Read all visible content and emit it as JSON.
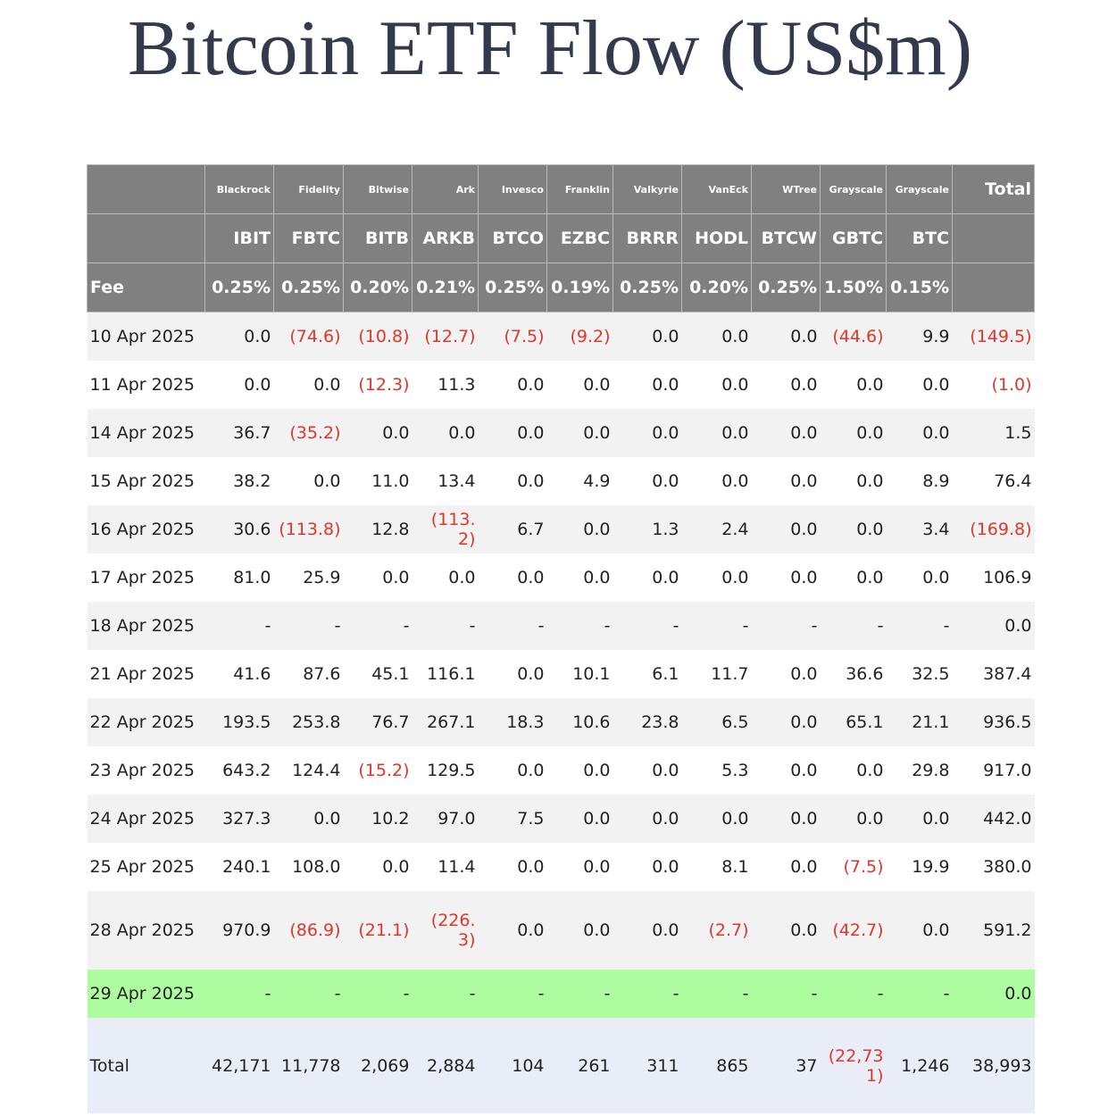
{
  "title": "Bitcoin ETF Flow (US$m)",
  "table": {
    "issuers": [
      "Blackrock",
      "Fidelity",
      "Bitwise",
      "Ark",
      "Invesco",
      "Franklin",
      "Valkyrie",
      "VanEck",
      "WTree",
      "Grayscale",
      "Grayscale"
    ],
    "total_header": "Total",
    "tickers": [
      "IBIT",
      "FBTC",
      "BITB",
      "ARKB",
      "BTCO",
      "EZBC",
      "BRRR",
      "HODL",
      "BTCW",
      "GBTC",
      "BTC"
    ],
    "fee_label": "Fee",
    "fees": [
      "0.25%",
      "0.25%",
      "0.20%",
      "0.21%",
      "0.25%",
      "0.19%",
      "0.25%",
      "0.20%",
      "0.25%",
      "1.50%",
      "0.15%"
    ],
    "rows": [
      [
        "10 Apr 2025",
        "0.0",
        "(74.6)",
        "(10.8)",
        "(12.7)",
        "(7.5)",
        "(9.2)",
        "0.0",
        "0.0",
        "0.0",
        "(44.6)",
        "9.9",
        "(149.5)"
      ],
      [
        "11 Apr 2025",
        "0.0",
        "0.0",
        "(12.3)",
        "11.3",
        "0.0",
        "0.0",
        "0.0",
        "0.0",
        "0.0",
        "0.0",
        "0.0",
        "(1.0)"
      ],
      [
        "14 Apr 2025",
        "36.7",
        "(35.2)",
        "0.0",
        "0.0",
        "0.0",
        "0.0",
        "0.0",
        "0.0",
        "0.0",
        "0.0",
        "0.0",
        "1.5"
      ],
      [
        "15 Apr 2025",
        "38.2",
        "0.0",
        "11.0",
        "13.4",
        "0.0",
        "4.9",
        "0.0",
        "0.0",
        "0.0",
        "0.0",
        "8.9",
        "76.4"
      ],
      [
        "16 Apr 2025",
        "30.6",
        "(113.8)",
        "12.8",
        "(113.2)",
        "6.7",
        "0.0",
        "1.3",
        "2.4",
        "0.0",
        "0.0",
        "3.4",
        "(169.8)"
      ],
      [
        "17 Apr 2025",
        "81.0",
        "25.9",
        "0.0",
        "0.0",
        "0.0",
        "0.0",
        "0.0",
        "0.0",
        "0.0",
        "0.0",
        "0.0",
        "106.9"
      ],
      [
        "18 Apr 2025",
        "-",
        "-",
        "-",
        "-",
        "-",
        "-",
        "-",
        "-",
        "-",
        "-",
        "-",
        "0.0"
      ],
      [
        "21 Apr 2025",
        "41.6",
        "87.6",
        "45.1",
        "116.1",
        "0.0",
        "10.1",
        "6.1",
        "11.7",
        "0.0",
        "36.6",
        "32.5",
        "387.4"
      ],
      [
        "22 Apr 2025",
        "193.5",
        "253.8",
        "76.7",
        "267.1",
        "18.3",
        "10.6",
        "23.8",
        "6.5",
        "0.0",
        "65.1",
        "21.1",
        "936.5"
      ],
      [
        "23 Apr 2025",
        "643.2",
        "124.4",
        "(15.2)",
        "129.5",
        "0.0",
        "0.0",
        "0.0",
        "5.3",
        "0.0",
        "0.0",
        "29.8",
        "917.0"
      ],
      [
        "24 Apr 2025",
        "327.3",
        "0.0",
        "10.2",
        "97.0",
        "7.5",
        "0.0",
        "0.0",
        "0.0",
        "0.0",
        "0.0",
        "0.0",
        "442.0"
      ],
      [
        "25 Apr 2025",
        "240.1",
        "108.0",
        "0.0",
        "11.4",
        "0.0",
        "0.0",
        "0.0",
        "8.1",
        "0.0",
        "(7.5)",
        "19.9",
        "380.0"
      ],
      [
        "28 Apr 2025",
        "970.9",
        "(86.9)",
        "(21.1)",
        "(226.3)",
        "0.0",
        "0.0",
        "0.0",
        "(2.7)",
        "0.0",
        "(42.7)",
        "0.0",
        "591.2"
      ],
      [
        "29 Apr 2025",
        "-",
        "-",
        "-",
        "-",
        "-",
        "-",
        "-",
        "-",
        "-",
        "-",
        "-",
        "0.0"
      ]
    ],
    "total_row": [
      "Total",
      "42,171",
      "11,778",
      "2,069",
      "2,884",
      "104",
      "261",
      "311",
      "865",
      "37",
      "(22,731)",
      "1,246",
      "38,993"
    ]
  }
}
